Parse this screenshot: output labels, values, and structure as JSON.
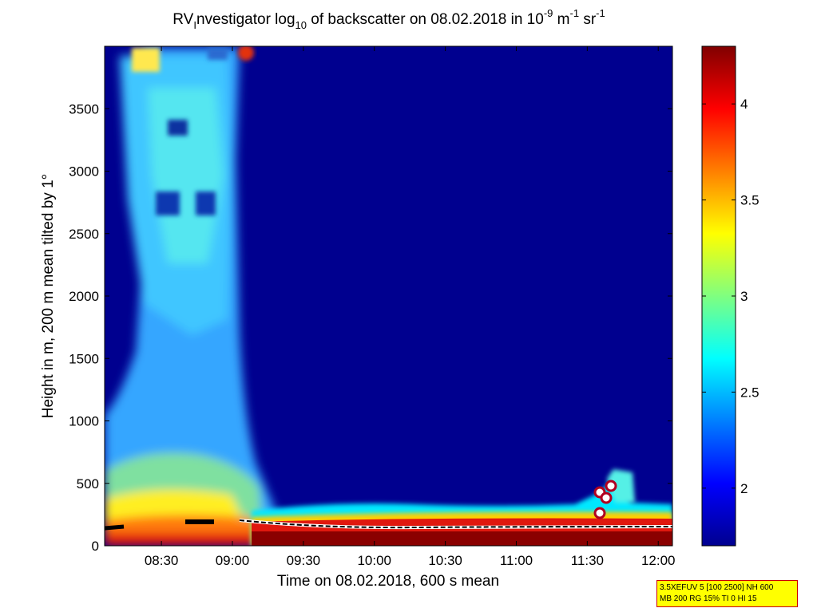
{
  "chart_data": {
    "type": "heatmap",
    "title": {
      "parts": [
        {
          "t": "RV",
          "s": "n"
        },
        {
          "t": "I",
          "s": "sub"
        },
        {
          "t": "nvestigator log",
          "s": "n"
        },
        {
          "t": "10",
          "s": "sub"
        },
        {
          "t": " of backscatter on 08.02.2018 in 10",
          "s": "n"
        },
        {
          "t": "-9",
          "s": "sup"
        },
        {
          "t": " m",
          "s": "n"
        },
        {
          "t": "-1",
          "s": "sup"
        },
        {
          "t": " sr",
          "s": "n"
        },
        {
          "t": "-1",
          "s": "sup"
        }
      ]
    },
    "xlabel": "Time on 08.02.2018, 600 s mean",
    "ylabel": "Height in m, 200 m mean tilted by 1°",
    "x_ticks": [
      "08:30",
      "09:00",
      "09:30",
      "10:00",
      "10:30",
      "11:00",
      "11:30",
      "12:00"
    ],
    "x_tick_hours": [
      8.5,
      9.0,
      9.5,
      10.0,
      10.5,
      11.0,
      11.5,
      12.0
    ],
    "xlim": [
      8.1,
      12.1
    ],
    "y_ticks": [
      "0",
      "500",
      "1000",
      "1500",
      "2000",
      "2500",
      "3000",
      "3500"
    ],
    "y_tick_values": [
      0,
      500,
      1000,
      1500,
      2000,
      2500,
      3000,
      3500
    ],
    "ylim": [
      0,
      4000
    ],
    "colorbar": {
      "ticks": [
        "2",
        "2.5",
        "3",
        "3.5",
        "4"
      ],
      "tick_values": [
        2,
        2.5,
        3,
        3.5,
        4
      ],
      "range": [
        1.7,
        4.3
      ],
      "colormap": "jet"
    },
    "background_value": 1.7,
    "cloud_base_height_m": 150
  },
  "info": {
    "line1": "3.5XEFUV 5 [100 2500] NH 600",
    "line2": "MB 200 RG 15% TI 0 HI 15"
  }
}
